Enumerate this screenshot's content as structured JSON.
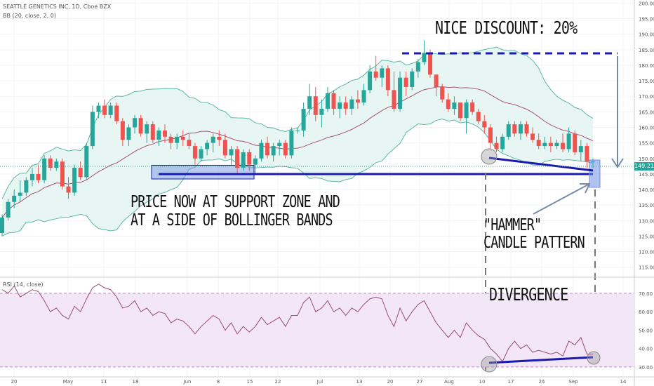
{
  "header": {
    "symbol_line": "SEATTLE GENETICS INC, 1D, Cboe BZX",
    "bb_line": "BB (20, close, 2, 0)",
    "rsi_line": "RSI (14, close)"
  },
  "annotations": {
    "discount": "NICE DISCOUNT: 20%",
    "support_line1": "PRICE NOW AT SUPPORT ZONE AND",
    "support_line2": "AT A SIDE OF BOLLINGER BANDS",
    "hammer_line1": "\"HAMMER\"",
    "hammer_line2": "CANDLE PATTERN",
    "divergence": "DIVERGENCE"
  },
  "last_price": "149.21",
  "colors": {
    "up": "#26a69a",
    "down": "#ef5350",
    "bb_fill": "#e6f5f2",
    "bb_band": "#5cb8a3",
    "bb_basis": "#a85070",
    "rsi_line": "#9b4a7a",
    "rsi_fill": "#f2e6f7",
    "annotation_line": "#1a1ab0",
    "support_zone": "#6f8fe0",
    "arrow": "#7a8aa6"
  },
  "chart_data": [
    {
      "type": "candlestick",
      "title": "SEATTLE GENETICS INC, 1D, Cboe BZX",
      "indicator": "BB (20, close, 2, 0)",
      "x_tick_labels": [
        "20",
        "May",
        "11",
        "18",
        "Jun",
        "8",
        "15",
        "22",
        "Jul",
        "13",
        "20",
        "27",
        "Aug",
        "10",
        "17",
        "24",
        "Sep",
        "14"
      ],
      "y_tick_labels": [
        "115.00",
        "120.00",
        "125.00",
        "130.00",
        "135.00",
        "140.00",
        "145.00",
        "150.00",
        "155.00",
        "160.00",
        "165.00",
        "170.00",
        "175.00",
        "180.00",
        "185.00",
        "190.00",
        "195.00",
        "200.00"
      ],
      "ylim": [
        112,
        201
      ],
      "last_price": 149.21,
      "ohlc": [
        [
          126,
          132,
          125,
          131
        ],
        [
          131,
          137,
          130,
          136
        ],
        [
          136,
          140,
          134,
          138
        ],
        [
          138,
          143,
          136,
          139
        ],
        [
          139,
          144,
          138,
          143
        ],
        [
          143,
          147,
          141,
          145
        ],
        [
          145,
          148,
          142,
          143
        ],
        [
          143,
          151,
          142,
          150
        ],
        [
          150,
          151,
          146,
          147
        ],
        [
          147,
          150,
          146,
          149
        ],
        [
          149,
          150,
          140,
          141
        ],
        [
          141,
          144,
          137,
          139
        ],
        [
          139,
          148,
          138,
          147
        ],
        [
          147,
          149,
          143,
          144
        ],
        [
          144,
          155,
          143,
          154
        ],
        [
          154,
          167,
          153,
          165
        ],
        [
          165,
          168,
          163,
          167
        ],
        [
          167,
          169,
          163,
          164
        ],
        [
          164,
          168,
          163,
          167
        ],
        [
          167,
          168,
          161,
          162
        ],
        [
          162,
          163,
          154,
          156
        ],
        [
          156,
          161,
          154,
          160
        ],
        [
          160,
          164,
          158,
          163
        ],
        [
          163,
          164,
          157,
          158
        ],
        [
          158,
          162,
          155,
          161
        ],
        [
          161,
          162,
          155,
          156
        ],
        [
          156,
          160,
          154,
          159
        ],
        [
          159,
          161,
          155,
          157
        ],
        [
          157,
          158,
          153,
          155
        ],
        [
          155,
          158,
          153,
          157
        ],
        [
          157,
          159,
          154,
          156
        ],
        [
          156,
          158,
          153,
          154
        ],
        [
          154,
          155,
          148,
          150
        ],
        [
          150,
          154,
          149,
          153
        ],
        [
          153,
          156,
          151,
          155
        ],
        [
          155,
          158,
          152,
          157
        ],
        [
          157,
          159,
          154,
          156
        ],
        [
          156,
          158,
          150,
          151
        ],
        [
          151,
          154,
          148,
          153
        ],
        [
          153,
          154,
          145,
          147
        ],
        [
          147,
          153,
          146,
          152
        ],
        [
          152,
          153,
          146,
          148
        ],
        [
          148,
          151,
          145,
          150
        ],
        [
          150,
          156,
          149,
          155
        ],
        [
          155,
          157,
          150,
          151
        ],
        [
          151,
          155,
          149,
          154
        ],
        [
          154,
          156,
          151,
          155
        ],
        [
          155,
          156,
          150,
          151
        ],
        [
          151,
          160,
          150,
          159
        ],
        [
          159,
          160,
          158,
          159
        ],
        [
          159,
          168,
          157,
          166
        ],
        [
          166,
          174,
          164,
          170
        ],
        [
          170,
          173,
          162,
          164
        ],
        [
          164,
          169,
          160,
          166
        ],
        [
          166,
          173,
          165,
          171
        ],
        [
          171,
          172,
          164,
          166
        ],
        [
          166,
          170,
          163,
          168
        ],
        [
          168,
          170,
          164,
          166
        ],
        [
          166,
          170,
          164,
          169
        ],
        [
          169,
          172,
          166,
          168
        ],
        [
          168,
          174,
          167,
          172
        ],
        [
          172,
          180,
          171,
          178
        ],
        [
          178,
          183,
          175,
          176
        ],
        [
          176,
          180,
          173,
          179
        ],
        [
          179,
          180,
          170,
          172
        ],
        [
          172,
          178,
          165,
          166
        ],
        [
          166,
          178,
          165,
          176
        ],
        [
          176,
          178,
          170,
          173
        ],
        [
          173,
          179,
          172,
          178
        ],
        [
          178,
          182,
          176,
          181
        ],
        [
          181,
          188,
          180,
          184
        ],
        [
          184,
          185,
          176,
          177
        ],
        [
          177,
          177,
          170,
          173
        ],
        [
          173,
          174,
          168,
          169
        ],
        [
          169,
          171,
          165,
          166
        ],
        [
          166,
          170,
          164,
          168
        ],
        [
          168,
          168,
          162,
          163
        ],
        [
          163,
          169,
          158,
          168
        ],
        [
          168,
          169,
          164,
          165
        ],
        [
          165,
          166,
          161,
          162
        ],
        [
          162,
          164,
          158,
          160
        ],
        [
          160,
          161,
          153,
          155
        ],
        [
          155,
          157,
          152,
          153
        ],
        [
          153,
          158,
          152,
          157
        ],
        [
          157,
          162,
          156,
          161
        ],
        [
          161,
          162,
          157,
          158
        ],
        [
          158,
          162,
          156,
          161
        ],
        [
          161,
          162,
          157,
          158
        ],
        [
          158,
          160,
          155,
          156
        ],
        [
          156,
          158,
          153,
          154
        ],
        [
          154,
          157,
          153,
          155
        ],
        [
          155,
          157,
          152,
          154
        ],
        [
          154,
          156,
          153,
          155
        ],
        [
          155,
          158,
          152,
          153
        ],
        [
          153,
          160,
          152,
          158
        ],
        [
          158,
          159,
          151,
          152
        ],
        [
          152,
          156,
          149,
          154
        ],
        [
          154,
          155,
          147,
          149
        ],
        [
          149,
          150,
          147,
          149
        ]
      ]
    },
    {
      "type": "line",
      "title": "RSI (14, close)",
      "y_tick_labels": [
        "30.00",
        "40.00",
        "50.00",
        "60.00",
        "70.00"
      ],
      "ylim": [
        25,
        78
      ],
      "bands": [
        30,
        70
      ],
      "values": [
        72,
        70,
        74,
        68,
        70,
        72,
        71,
        66,
        60,
        62,
        58,
        56,
        63,
        60,
        67,
        73,
        75,
        73,
        72,
        68,
        62,
        63,
        66,
        60,
        62,
        58,
        60,
        59,
        54,
        56,
        55,
        52,
        48,
        52,
        55,
        58,
        56,
        50,
        54,
        48,
        52,
        49,
        52,
        57,
        53,
        55,
        57,
        52,
        58,
        58,
        65,
        68,
        60,
        62,
        66,
        60,
        62,
        58,
        62,
        60,
        64,
        67,
        68,
        67,
        58,
        52,
        62,
        55,
        60,
        64,
        66,
        60,
        54,
        50,
        46,
        50,
        46,
        54,
        50,
        47,
        45,
        40,
        37,
        33,
        40,
        44,
        40,
        42,
        38,
        39,
        38,
        37,
        38,
        36,
        44,
        42,
        46,
        37,
        37
      ]
    }
  ]
}
